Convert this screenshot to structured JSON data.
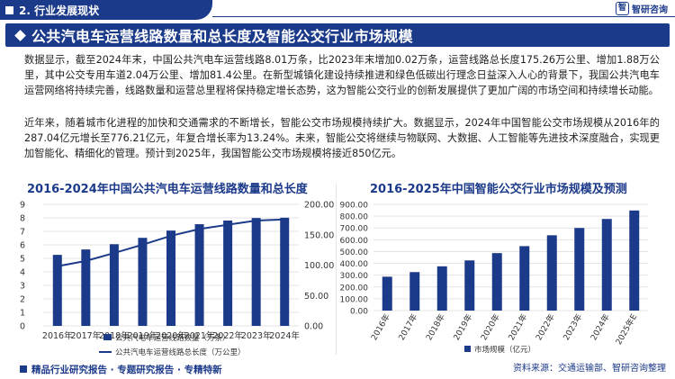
{
  "header": {
    "section_label": "2. 行业发展现状",
    "brand_mark": "智",
    "brand_name": "智研咨询"
  },
  "title": "公共汽电车运营线路数量和总长度及智能公交行业市场规模",
  "paragraphs": [
    "数据显示，截至2024年末，中国公共汽电车运营线路8.01万条，比2023年末增加0.02万条，运营线路总长度175.26万公里、增加1.88万公里，其中公交专用车道2.04万公里、增加81.4公里。在新型城镇化建设持续推进和绿色低碳出行理念日益深入人心的背景下，我国公共汽电车运营网络将持续完善，线路数量和运营总里程将保持稳定增长态势，这为智能公交行业的创新发展提供了更加广阔的市场空间和持续增长动能。",
    "近年来，随着城市化进程的加快和交通需求的不断增长，智能公交市场规模持续扩大。数据显示，2024年中国智能公交市场规模从2016年的287.04亿元增长至776.21亿元，年复合增长率为13.24%。未来，智能公交将继续与物联网、大数据、人工智能等先进技术深度融合，实现更加智能化、精细化的管理。预计到2025年，我国智能公交市场规模将接近850亿元。"
  ],
  "chart_data": [
    {
      "type": "bar",
      "title": "2016-2024年中国公共汽电车运营线路数量和总长度",
      "categories": [
        "2016年",
        "2017年",
        "2018年",
        "2019年",
        "2020年",
        "2021年",
        "2022年",
        "2023年",
        "2024年"
      ],
      "series": [
        {
          "name": "公共汽电车运营线路数量（万条）",
          "type": "bar",
          "axis": "left",
          "values": [
            5.26,
            5.66,
            6.05,
            6.52,
            7.06,
            7.53,
            7.8,
            7.99,
            8.01
          ]
        },
        {
          "name": "公共汽电车运营线路总长度（万公里）",
          "type": "line",
          "axis": "right",
          "values": [
            98.1,
            106.9,
            119.9,
            133.6,
            148.2,
            159.4,
            166.4,
            173.4,
            175.26
          ]
        }
      ],
      "y_left": {
        "ylim": [
          0,
          9
        ],
        "ticks": [
          "0",
          "1",
          "2",
          "3",
          "4",
          "5",
          "6",
          "7",
          "8",
          "9"
        ]
      },
      "y_right": {
        "ylim": [
          0,
          200
        ],
        "ticks": [
          "0.00",
          "50.00",
          "100.00",
          "150.00",
          "200.00"
        ]
      },
      "legend_position": "bottom",
      "colors": {
        "bar": "#1c3a8a",
        "line": "#1c3a8a"
      }
    },
    {
      "type": "bar",
      "title": "2016-2025年中国智能公交行业市场规模及预测",
      "categories": [
        "2016年",
        "2017年",
        "2018年",
        "2019年",
        "2020年",
        "2021年",
        "2022年",
        "2023年",
        "2024年",
        "2025年E"
      ],
      "series": [
        {
          "name": "市场规模（亿元）",
          "values": [
            287.04,
            326.0,
            375.0,
            425.0,
            487.0,
            546.0,
            638.0,
            700.0,
            776.21,
            848.0
          ]
        }
      ],
      "ylim": [
        0,
        900
      ],
      "ticks": [
        "0.00",
        "100.00",
        "200.00",
        "300.00",
        "400.00",
        "500.00",
        "600.00",
        "700.00",
        "800.00",
        "900.00"
      ],
      "legend_position": "bottom",
      "colors": {
        "bar": "#1c3a8a"
      }
    }
  ],
  "footer": {
    "left": "精品行业研究报告 · 专题研究报告 · 专精特新",
    "source": "资料来源：交通运输部、智研咨询整理"
  }
}
